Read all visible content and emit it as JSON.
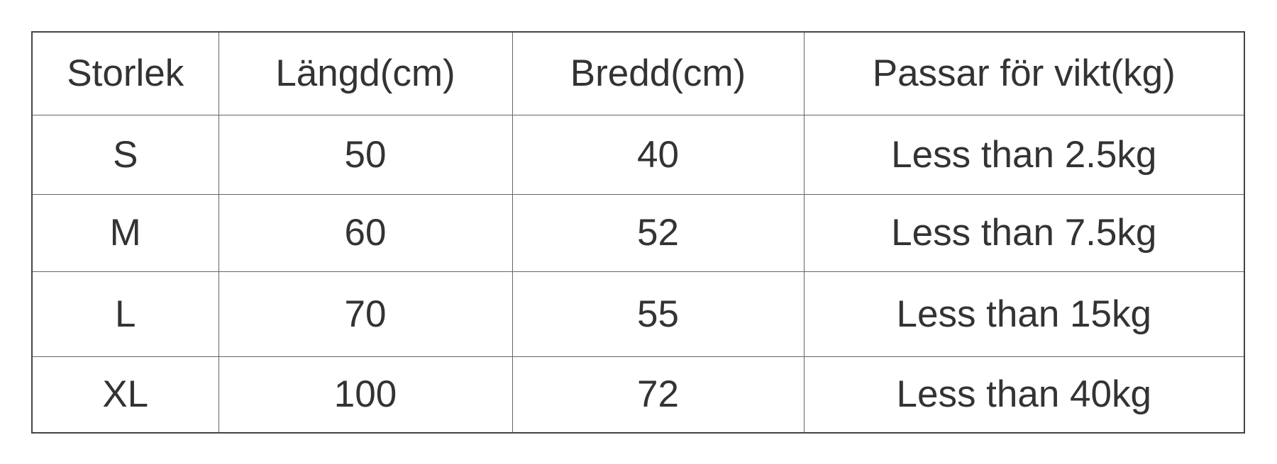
{
  "table": {
    "headers": [
      "Storlek",
      "Längd(cm)",
      "Bredd(cm)",
      "Passar för vikt(kg)"
    ],
    "rows": [
      [
        "S",
        "50",
        "40",
        "Less than 2.5kg"
      ],
      [
        "M",
        "60",
        "52",
        "Less than 7.5kg"
      ],
      [
        "L",
        "70",
        "55",
        "Less than 15kg"
      ],
      [
        "XL",
        "100",
        "72",
        "Less than 40kg"
      ]
    ]
  }
}
